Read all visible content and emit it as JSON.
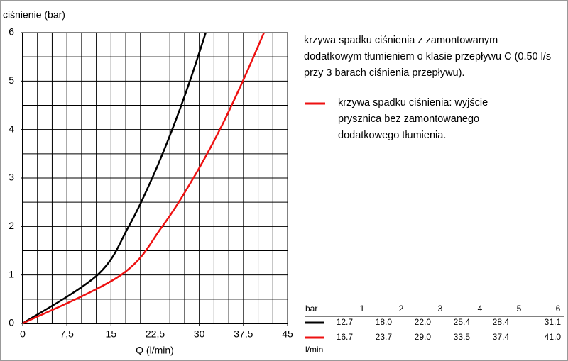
{
  "chart_data": {
    "type": "line",
    "y_axis_label": "ciśnienie (bar)",
    "x_axis_label": "Q  (l/min)",
    "xlim": [
      0,
      45
    ],
    "xticks": [
      0,
      {
        "value": 7.5,
        "label": "7,5"
      },
      15,
      {
        "value": 22.5,
        "label": "22,5"
      },
      30,
      {
        "value": 37.5,
        "label": "37,5"
      },
      45
    ],
    "ylim": [
      0,
      6
    ],
    "yticks": [
      0,
      1,
      2,
      3,
      4,
      5,
      6
    ],
    "grid": true,
    "grid_step": {
      "x": 2.5,
      "y": 0.5
    },
    "series": [
      {
        "name": "krzywa spadku ciśnienia z zamontowanym dodatkowym tłumieniem o klasie przepływu C (0.50 l/s przy 3 barach ciśnienia przepływu).",
        "color": "#000000",
        "x": [
          0,
          12.7,
          18.0,
          22.0,
          25.4,
          28.4,
          31.1
        ],
        "values": [
          0,
          1,
          2,
          3,
          4,
          5,
          6
        ]
      },
      {
        "name": "krzywa spadku ciśnienia: wyjście prysznica bez zamontowanego dodatkowego tłumienia.",
        "color": "#ee1111",
        "x": [
          0,
          16.7,
          23.7,
          29.0,
          33.5,
          37.4,
          41.0
        ],
        "values": [
          0,
          1,
          2,
          3,
          4,
          5,
          6
        ]
      }
    ]
  },
  "table": {
    "header": "bar",
    "columns": [
      1,
      2,
      3,
      4,
      5,
      6
    ],
    "rows": [
      {
        "color": "#000000",
        "values": [
          "12.7",
          "18.0",
          "22.0",
          "25.4",
          "28.4",
          "31.1"
        ]
      },
      {
        "color": "#ee1111",
        "values": [
          "16.7",
          "23.7",
          "29.0",
          "33.5",
          "37.4",
          "41.0"
        ]
      }
    ],
    "unit": "l/min"
  }
}
